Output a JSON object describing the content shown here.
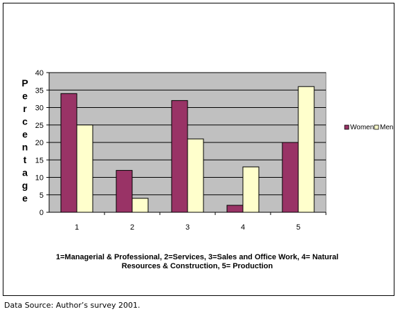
{
  "chart_data": {
    "type": "bar",
    "categories": [
      "1",
      "2",
      "3",
      "4",
      "5"
    ],
    "series": [
      {
        "name": "Women",
        "values": [
          34,
          12,
          32,
          2,
          20
        ],
        "color": "#993366"
      },
      {
        "name": "Men",
        "values": [
          25,
          4,
          21,
          13,
          36
        ],
        "color": "#FFFFCC"
      }
    ],
    "ylabel": "Percentage",
    "ylim": [
      0,
      40
    ],
    "yticks": [
      "0",
      "5",
      "10",
      "15",
      "20",
      "25",
      "30",
      "35",
      "40"
    ],
    "grid": true,
    "plot_background": "#C0C0C0",
    "legend_position": "right"
  },
  "caption": "1=Managerial & Professional, 2=Services, 3=Sales and Office Work, 4= Natural Resources & Construction, 5= Production",
  "source": "Data Source: Author’s survey 2001."
}
